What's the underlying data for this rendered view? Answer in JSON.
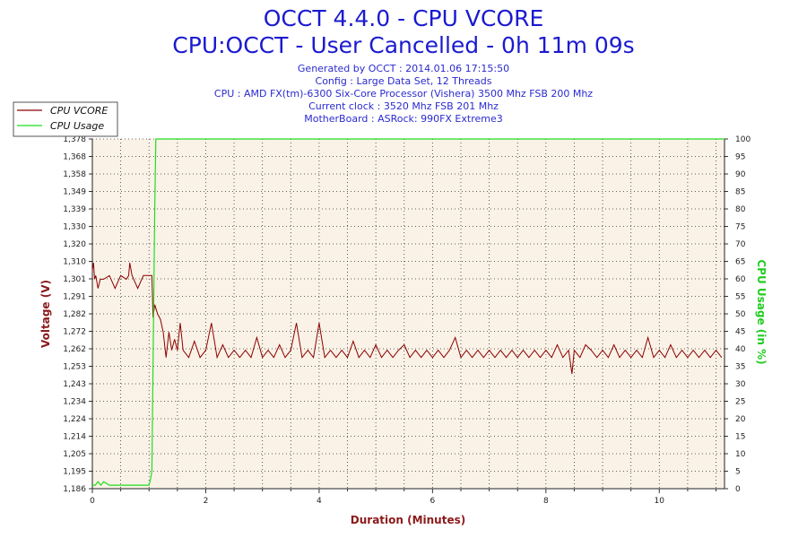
{
  "chart_data": {
    "type": "line",
    "title": "OCCT 4.4.0 - CPU VCORE",
    "subtitle": "CPU:OCCT - User Cancelled - 0h 11m 09s",
    "info_lines": [
      "Generated by OCCT : 2014.01.06 17:15:50",
      "Config : Large Data Set, 12 Threads",
      "CPU : AMD FX(tm)-6300 Six-Core Processor (Vishera) 3500 Mhz FSB 200 Mhz",
      "Current clock : 3520 Mhz FSB 201 Mhz",
      "MotherBoard : ASRock: 990FX Extreme3"
    ],
    "xlabel": "Duration (Minutes)",
    "ylabel": "Voltage (V)",
    "y2label": "CPU Usage (in %)",
    "xlim": [
      0,
      11.15
    ],
    "ylim": [
      1.186,
      1.378
    ],
    "y2lim": [
      0,
      100
    ],
    "x_ticks": [
      "0",
      "2",
      "4",
      "6",
      "8",
      "10"
    ],
    "x_tick_values": [
      0,
      2,
      4,
      6,
      8,
      10
    ],
    "y_ticks": [
      "1,186",
      "1,195",
      "1,205",
      "1,214",
      "1,224",
      "1,234",
      "1,243",
      "1,253",
      "1,262",
      "1,272",
      "1,282",
      "1,291",
      "1,301",
      "1,310",
      "1,320",
      "1,330",
      "1,339",
      "1,349",
      "1,358",
      "1,368",
      "1,378"
    ],
    "y_tick_values": [
      1.186,
      1.1956,
      1.2052,
      1.2148,
      1.2244,
      1.234,
      1.2436,
      1.2532,
      1.2628,
      1.2724,
      1.282,
      1.2916,
      1.3012,
      1.3108,
      1.3204,
      1.33,
      1.3396,
      1.3492,
      1.3588,
      1.3684,
      1.378
    ],
    "y2_ticks": [
      "0",
      "5",
      "10",
      "15",
      "20",
      "25",
      "30",
      "35",
      "40",
      "45",
      "50",
      "55",
      "60",
      "65",
      "70",
      "75",
      "80",
      "85",
      "90",
      "95",
      "100"
    ],
    "y2_tick_values": [
      0,
      5,
      10,
      15,
      20,
      25,
      30,
      35,
      40,
      45,
      50,
      55,
      60,
      65,
      70,
      75,
      80,
      85,
      90,
      95,
      100
    ],
    "grid": true,
    "legend_position": "top-left",
    "series": [
      {
        "name": "CPU VCORE",
        "color": "#8b0000",
        "axis": "left",
        "x": [
          0,
          0.02,
          0.04,
          0.06,
          0.1,
          0.14,
          0.2,
          0.3,
          0.4,
          0.5,
          0.6,
          0.64,
          0.66,
          0.7,
          0.8,
          0.9,
          0.95,
          1.0,
          1.05,
          1.07,
          1.1,
          1.15,
          1.2,
          1.25,
          1.3,
          1.35,
          1.4,
          1.45,
          1.5,
          1.55,
          1.6,
          1.7,
          1.8,
          1.9,
          2.0,
          2.1,
          2.2,
          2.3,
          2.4,
          2.5,
          2.6,
          2.7,
          2.8,
          2.9,
          3.0,
          3.1,
          3.2,
          3.3,
          3.4,
          3.5,
          3.6,
          3.7,
          3.8,
          3.9,
          4.0,
          4.1,
          4.2,
          4.3,
          4.4,
          4.5,
          4.6,
          4.7,
          4.8,
          4.9,
          5.0,
          5.1,
          5.2,
          5.3,
          5.4,
          5.5,
          5.6,
          5.7,
          5.8,
          5.9,
          6.0,
          6.1,
          6.2,
          6.3,
          6.4,
          6.5,
          6.6,
          6.7,
          6.8,
          6.9,
          7.0,
          7.1,
          7.2,
          7.3,
          7.4,
          7.5,
          7.6,
          7.7,
          7.8,
          7.9,
          8.0,
          8.1,
          8.2,
          8.3,
          8.4,
          8.46,
          8.5,
          8.6,
          8.7,
          8.8,
          8.9,
          9.0,
          9.1,
          9.2,
          9.3,
          9.4,
          9.5,
          9.6,
          9.7,
          9.8,
          9.9,
          10.0,
          10.1,
          10.2,
          10.3,
          10.4,
          10.5,
          10.6,
          10.7,
          10.8,
          10.9,
          11.0,
          11.1
        ],
        "y": [
          1.306,
          1.31,
          1.301,
          1.303,
          1.296,
          1.301,
          1.301,
          1.303,
          1.296,
          1.303,
          1.301,
          1.303,
          1.31,
          1.303,
          1.296,
          1.303,
          1.303,
          1.303,
          1.303,
          1.28,
          1.287,
          1.282,
          1.279,
          1.272,
          1.258,
          1.272,
          1.262,
          1.268,
          1.262,
          1.277,
          1.262,
          1.258,
          1.267,
          1.258,
          1.262,
          1.277,
          1.258,
          1.265,
          1.258,
          1.262,
          1.258,
          1.262,
          1.258,
          1.269,
          1.258,
          1.262,
          1.258,
          1.265,
          1.258,
          1.262,
          1.277,
          1.258,
          1.262,
          1.258,
          1.277,
          1.258,
          1.262,
          1.258,
          1.262,
          1.258,
          1.267,
          1.258,
          1.262,
          1.258,
          1.265,
          1.258,
          1.262,
          1.258,
          1.262,
          1.265,
          1.258,
          1.262,
          1.258,
          1.262,
          1.258,
          1.262,
          1.258,
          1.262,
          1.269,
          1.258,
          1.262,
          1.258,
          1.262,
          1.258,
          1.262,
          1.258,
          1.262,
          1.258,
          1.262,
          1.258,
          1.262,
          1.258,
          1.262,
          1.258,
          1.262,
          1.258,
          1.265,
          1.258,
          1.262,
          1.249,
          1.262,
          1.258,
          1.265,
          1.262,
          1.258,
          1.262,
          1.258,
          1.265,
          1.258,
          1.262,
          1.258,
          1.262,
          1.258,
          1.269,
          1.258,
          1.262,
          1.258,
          1.265,
          1.258,
          1.262,
          1.258,
          1.262,
          1.258,
          1.262,
          1.258,
          1.262,
          1.258
        ]
      },
      {
        "name": "CPU Usage",
        "color": "#22dd22",
        "axis": "right",
        "x": [
          0,
          0.05,
          0.1,
          0.15,
          0.2,
          0.3,
          0.4,
          0.5,
          0.6,
          0.7,
          0.8,
          0.9,
          1.0,
          1.03,
          1.05,
          1.08,
          1.1,
          1.12,
          1.2,
          1.5,
          2.0,
          3.0,
          4.0,
          5.0,
          6.0,
          7.0,
          8.0,
          9.0,
          10.0,
          11.0,
          11.15
        ],
        "y": [
          1,
          1,
          2,
          1,
          2,
          1,
          1,
          1,
          1,
          1,
          1,
          1,
          1,
          3,
          5,
          50,
          80,
          100,
          100,
          100,
          100,
          100,
          100,
          100,
          100,
          100,
          100,
          100,
          100,
          100,
          100
        ]
      }
    ]
  }
}
